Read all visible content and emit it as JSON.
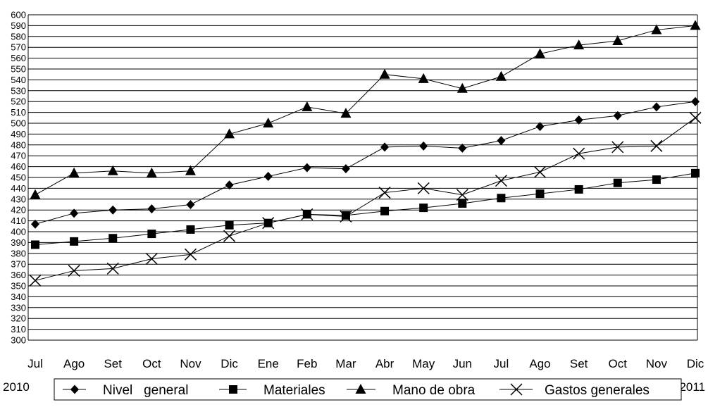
{
  "chart_data": {
    "type": "line",
    "title": "",
    "xlabel": "",
    "ylabel": "",
    "ylim": [
      300,
      600
    ],
    "ytick_step": 10,
    "grid": true,
    "legend_position": "bottom",
    "categories": [
      "Jul",
      "Ago",
      "Set",
      "Oct",
      "Nov",
      "Dic",
      "Ene",
      "Feb",
      "Mar",
      "Abr",
      "May",
      "Jun",
      "Jul",
      "Ago",
      "Set",
      "Oct",
      "Nov",
      "Dic"
    ],
    "year_labels": {
      "first": "2010",
      "last": "2011"
    },
    "series": [
      {
        "name": "Nivel   general",
        "marker": "diamond",
        "values": [
          407,
          417,
          420,
          421,
          425,
          443,
          451,
          459,
          458,
          478,
          479,
          477,
          484,
          497,
          503,
          507,
          515,
          520
        ]
      },
      {
        "name": "Materiales",
        "marker": "square",
        "values": [
          388,
          391,
          394,
          398,
          402,
          406,
          408,
          416,
          415,
          419,
          422,
          426,
          431,
          435,
          439,
          445,
          448,
          454
        ]
      },
      {
        "name": "Mano de obra",
        "marker": "triangle",
        "values": [
          434,
          454,
          456,
          454,
          456,
          490,
          500,
          515,
          509,
          545,
          541,
          532,
          543,
          564,
          572,
          576,
          586,
          590
        ]
      },
      {
        "name": "Gastos generales",
        "marker": "x",
        "values": [
          355,
          364,
          366,
          375,
          379,
          396,
          408,
          416,
          414,
          436,
          440,
          434,
          447,
          455,
          472,
          478,
          479,
          505
        ]
      }
    ]
  }
}
